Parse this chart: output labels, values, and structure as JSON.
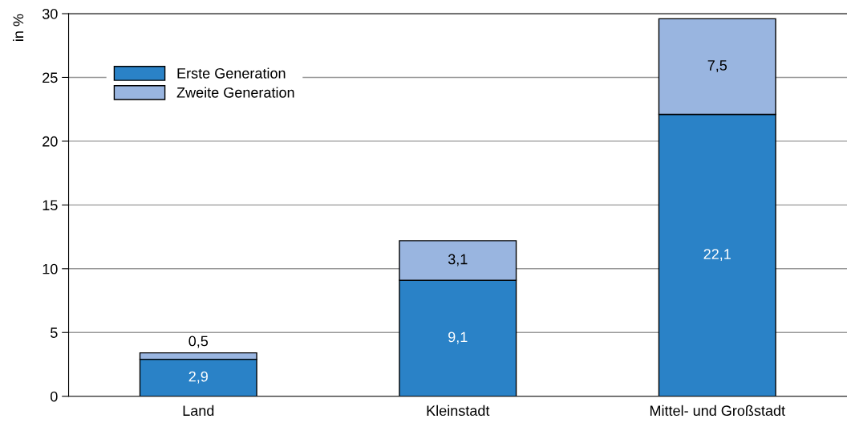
{
  "chart_data": {
    "type": "bar",
    "stacked": true,
    "ylabel": "in %",
    "categories": [
      "Land",
      "Kleinstadt",
      "Mittel- und Großstadt"
    ],
    "series": [
      {
        "name": "Erste Generation",
        "color": "#2a82c7",
        "values": [
          2.9,
          9.1,
          22.1
        ],
        "value_labels": [
          "2,9",
          "9,1",
          "22,1"
        ]
      },
      {
        "name": "Zweite Generation",
        "color": "#99b5e0",
        "values": [
          0.5,
          3.1,
          7.5
        ],
        "value_labels": [
          "0,5",
          "3,1",
          "7,5"
        ]
      }
    ],
    "ylim": [
      0,
      30
    ],
    "yticks": [
      0,
      5,
      10,
      15,
      20,
      25,
      30
    ],
    "grid": "y",
    "legend": "top left"
  }
}
